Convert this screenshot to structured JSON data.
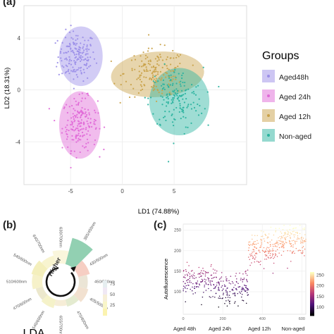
{
  "panels": [
    {
      "label": "(a)",
      "chart_data": {
        "type": "scatter",
        "xlabel": "LD1 (74.88%)",
        "ylabel": "LD2 (18.31%)",
        "xlim": [
          -9.5,
          12
        ],
        "ylim": [
          -7.3,
          6.5
        ],
        "xticks": [
          -5,
          0,
          5
        ],
        "yticks": [
          -4,
          0,
          4
        ],
        "grid": true,
        "legend_title": "Groups",
        "legend_position": "right",
        "series": [
          {
            "name": "Aged48h",
            "color": "#9b8ee8",
            "cx": -4.4,
            "cy": 2.6,
            "sx": 0.9,
            "sy": 0.95,
            "n": 170,
            "ellipse": {
              "cx": -4.0,
              "cy": 2.6,
              "rx": 2.1,
              "ry": 2.3,
              "angle": 0
            }
          },
          {
            "name": "Aged 24h",
            "color": "#e06ad8",
            "cx": -4.1,
            "cy": -2.6,
            "sx": 0.85,
            "sy": 1.0,
            "n": 180,
            "ellipse": {
              "cx": -4.1,
              "cy": -2.7,
              "rx": 2.0,
              "ry": 2.6,
              "angle": 0
            }
          },
          {
            "name": "Aged 12h",
            "color": "#c9a24a",
            "cx": 3.2,
            "cy": 1.3,
            "sx": 1.5,
            "sy": 0.9,
            "n": 170,
            "ellipse": {
              "cx": 3.4,
              "cy": 1.2,
              "rx": 4.5,
              "ry": 1.75,
              "angle": -4
            }
          },
          {
            "name": "Non-aged",
            "color": "#2bb39f",
            "cx": 5.2,
            "cy": -0.7,
            "sx": 1.3,
            "sy": 1.2,
            "n": 160,
            "ellipse": {
              "cx": 5.5,
              "cy": -0.9,
              "rx": 2.9,
              "ry": 2.6,
              "angle": 0
            }
          }
        ]
      }
    },
    {
      "label": "(b)",
      "title": "LDA",
      "center_label": "Higher",
      "colorbar_ticks": [
        "75",
        "50",
        "25"
      ],
      "segments": [
        "365/450nm",
        "430/500nm",
        "450/500nm",
        "405/500nm",
        "470/600nm",
        "655/700nm",
        "540/600nm",
        "470/600nm",
        "510/600nm",
        "540/600nm",
        "640/700nm",
        "630/700nm"
      ],
      "segment_values": [
        92,
        40,
        30,
        35,
        25,
        20,
        30,
        25,
        35,
        40,
        30,
        45
      ],
      "segment_colors": [
        "#7fc8a4",
        "#f4c6b8",
        "#e8e0cf",
        "#f0dcc8",
        "#dfe8c8",
        "#f5ead0",
        "#f3f0c0",
        "#e9e4c4",
        "#f4efc0",
        "#f2ecb0",
        "#f7f2c8",
        "#f9f5d6"
      ]
    },
    {
      "label": "(c)",
      "chart_data": {
        "type": "scatter",
        "xlabel": "",
        "ylabel": "Autofluorescence",
        "xlim": [
          0,
          620
        ],
        "ylim": [
          45,
          265
        ],
        "xticks": [
          0,
          200,
          400,
          600
        ],
        "yticks": [
          100,
          150,
          200,
          250
        ],
        "category_labels": [
          "Aged 48h",
          "Aged 24h",
          "Aged 12h",
          "Non-aged"
        ],
        "colorbar_ticks": [
          250,
          200,
          150,
          100
        ],
        "clusters": [
          {
            "x0": 0,
            "x1": 170,
            "y": 125,
            "sd": 20,
            "n": 150
          },
          {
            "x0": 170,
            "x1": 330,
            "y": 110,
            "sd": 20,
            "n": 140
          },
          {
            "x0": 330,
            "x1": 480,
            "y": 205,
            "sd": 20,
            "n": 150
          },
          {
            "x0": 480,
            "x1": 620,
            "y": 225,
            "sd": 18,
            "n": 140
          }
        ]
      }
    }
  ]
}
